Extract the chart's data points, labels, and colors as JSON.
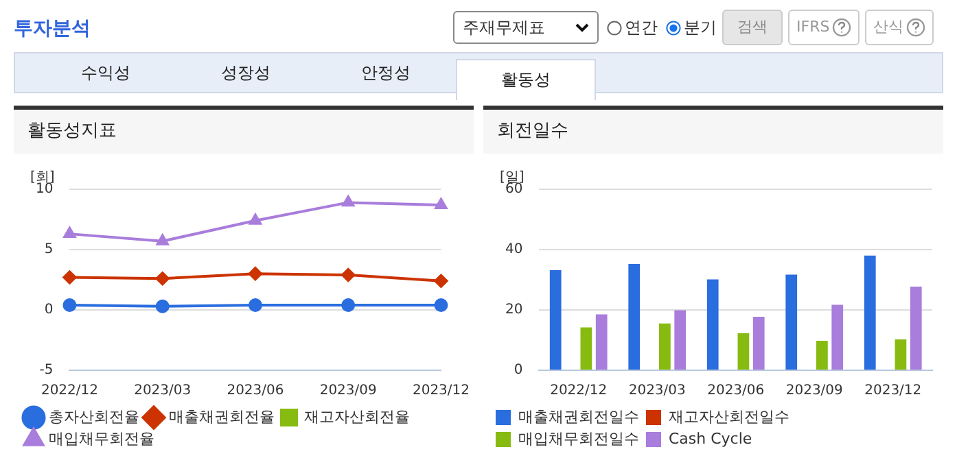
{
  "chart_data": [
    {
      "type": "line",
      "title": "활동성지표",
      "ylabel": "[회]",
      "annotations": [
        "투자분석",
        "주재무제표",
        "연간",
        "분기",
        "검색",
        "IFRS",
        "산식",
        "수익성",
        "성장성",
        "안정성",
        "활동성"
      ],
      "categories": [
        "2022/12",
        "2023/03",
        "2023/06",
        "2023/09",
        "2023/12"
      ],
      "series": [
        {
          "name": "총자산회전율",
          "color": "#2a6ddf",
          "marker": "circle",
          "values": [
            0.4,
            0.3,
            0.4,
            0.4,
            0.4
          ]
        },
        {
          "name": "매출채권회전율",
          "color": "#cc3300",
          "marker": "diamond",
          "values": [
            2.7,
            2.6,
            3.0,
            2.9,
            2.4
          ]
        },
        {
          "name": "재고자산회전율",
          "color": "#88bb11",
          "marker": "square",
          "values": [
            null,
            null,
            null,
            null,
            null
          ]
        },
        {
          "name": "매입채무회전율",
          "color": "#a87ddb",
          "marker": "triangle",
          "values": [
            6.3,
            5.7,
            7.4,
            8.9,
            8.7
          ]
        }
      ],
      "ylim": [
        -5,
        10
      ],
      "yticks": [
        -5,
        0,
        5,
        10
      ],
      "grid": "y",
      "legend": "bottom"
    },
    {
      "type": "bar",
      "title": "회전일수",
      "ylabel": "[일]",
      "categories": [
        "2022/12",
        "2023/03",
        "2023/06",
        "2023/09",
        "2023/12"
      ],
      "series": [
        {
          "name": "매출채권회전일수",
          "color": "#2a6ddf",
          "values": [
            33.2,
            35.2,
            30.1,
            31.7,
            38.0
          ]
        },
        {
          "name": "재고자산회전일수",
          "color": "#cc3300",
          "values": [
            null,
            null,
            null,
            null,
            null
          ]
        },
        {
          "name": "매입채무회전일수",
          "color": "#88bb11",
          "values": [
            14.2,
            15.5,
            12.3,
            9.8,
            10.2
          ]
        },
        {
          "name": "Cash Cycle",
          "color": "#a87ddb",
          "values": [
            18.5,
            19.9,
            17.7,
            21.7,
            27.7
          ]
        }
      ],
      "ylim": [
        0,
        60
      ],
      "yticks": [
        0,
        20,
        40,
        60
      ],
      "grid": "y",
      "legend": "bottom"
    }
  ]
}
